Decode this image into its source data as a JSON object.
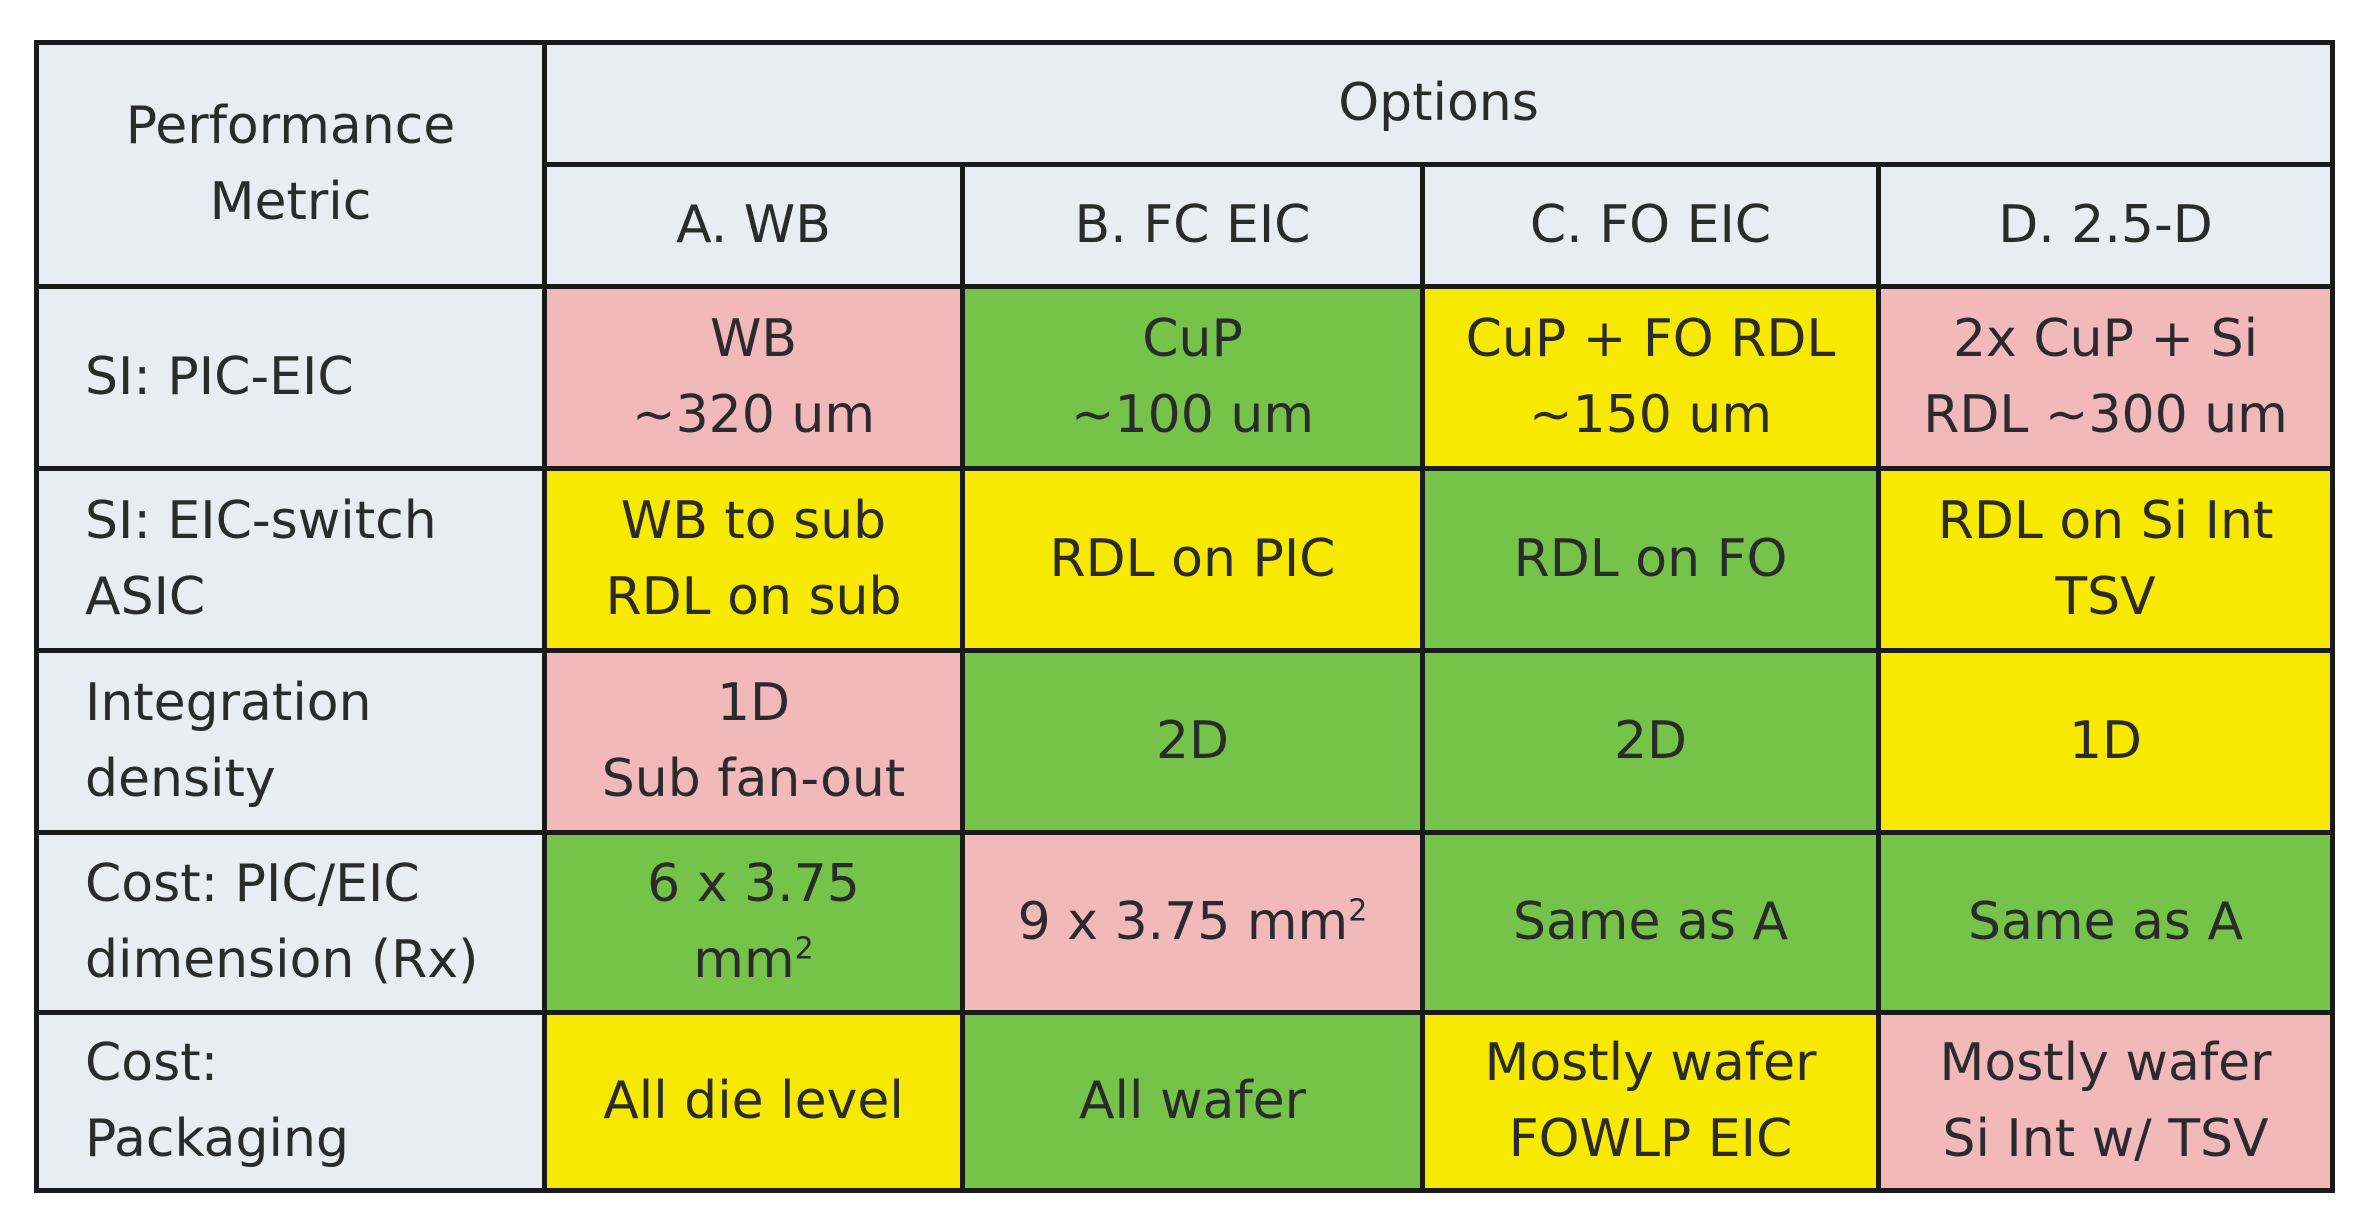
{
  "corner_label_lines": [
    "Performance",
    "Metric"
  ],
  "options_header": "Options",
  "columns": [
    "A. WB",
    "B. FC EIC",
    "C. FO EIC",
    "D. 2.5-D"
  ],
  "colors": {
    "pink": "#f2b9bb",
    "green": "#76c34a",
    "yellow": "#f7ea00",
    "header_bg": "#e9ecf2"
  },
  "rows": [
    {
      "metric": [
        "SI: PIC-EIC"
      ],
      "cells": [
        {
          "lines": [
            "WB",
            "~320 um"
          ],
          "color": "pink"
        },
        {
          "lines": [
            "CuP",
            "~100 um"
          ],
          "color": "green"
        },
        {
          "lines": [
            "CuP + FO RDL",
            "~150 um"
          ],
          "color": "yellow"
        },
        {
          "lines": [
            "2x CuP + Si",
            "RDL ~300 um"
          ],
          "color": "pink"
        }
      ]
    },
    {
      "metric": [
        "SI: EIC-switch",
        "ASIC"
      ],
      "cells": [
        {
          "lines": [
            "WB to sub",
            "RDL on sub"
          ],
          "color": "yellow"
        },
        {
          "lines": [
            "RDL on PIC"
          ],
          "color": "yellow"
        },
        {
          "lines": [
            "RDL on FO"
          ],
          "color": "green"
        },
        {
          "lines": [
            "RDL on Si Int",
            "TSV"
          ],
          "color": "yellow"
        }
      ]
    },
    {
      "metric": [
        "Integration",
        "density"
      ],
      "cells": [
        {
          "lines": [
            "1D",
            "Sub fan-out"
          ],
          "color": "pink"
        },
        {
          "lines": [
            "2D"
          ],
          "color": "green"
        },
        {
          "lines": [
            "2D"
          ],
          "color": "green"
        },
        {
          "lines": [
            "1D"
          ],
          "color": "yellow"
        }
      ]
    },
    {
      "metric": [
        "Cost: PIC/EIC",
        "dimension (Rx)"
      ],
      "cells": [
        {
          "lines": [
            "6 x 3.75",
            "mm"
          ],
          "sup": "2",
          "color": "green"
        },
        {
          "lines": [
            "9 x 3.75 mm"
          ],
          "sup": "2",
          "color": "pink"
        },
        {
          "lines": [
            "Same as A"
          ],
          "color": "green"
        },
        {
          "lines": [
            "Same as A"
          ],
          "color": "green"
        }
      ]
    },
    {
      "metric": [
        "Cost:",
        "Packaging"
      ],
      "cells": [
        {
          "lines": [
            "All die level"
          ],
          "color": "yellow"
        },
        {
          "lines": [
            "All wafer"
          ],
          "color": "green"
        },
        {
          "lines": [
            "Mostly wafer",
            "FOWLP EIC"
          ],
          "color": "yellow"
        },
        {
          "lines": [
            "Mostly wafer",
            "Si Int w/ TSV"
          ],
          "color": "pink"
        }
      ]
    }
  ]
}
